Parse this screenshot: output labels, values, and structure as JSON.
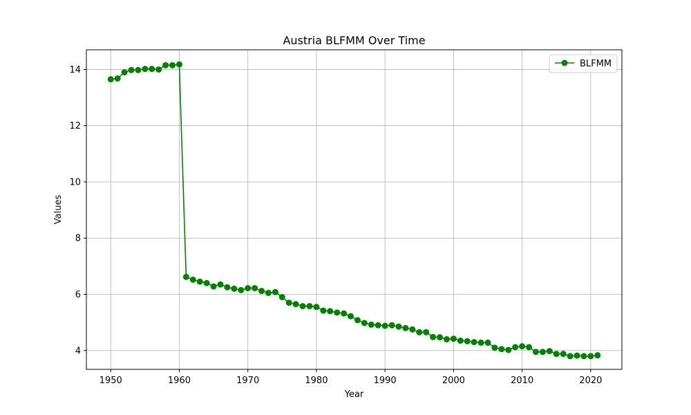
{
  "chart_data": {
    "type": "line",
    "title": "Austria BLFMM Over Time",
    "xlabel": "Year",
    "ylabel": "Values",
    "xlim": [
      1946.45,
      2024.55
    ],
    "ylim": [
      3.33,
      14.7
    ],
    "x_ticks": [
      1950,
      1960,
      1970,
      1980,
      1990,
      2000,
      2010,
      2020
    ],
    "y_ticks": [
      4,
      6,
      8,
      10,
      12,
      14
    ],
    "grid": true,
    "legend_position": "top-right",
    "series": [
      {
        "name": "BLFMM",
        "color": "#008000",
        "marker": "circle",
        "x": [
          1950,
          1951,
          1952,
          1953,
          1954,
          1955,
          1956,
          1957,
          1958,
          1959,
          1960,
          1961,
          1962,
          1963,
          1964,
          1965,
          1966,
          1967,
          1968,
          1969,
          1970,
          1971,
          1972,
          1973,
          1974,
          1975,
          1976,
          1977,
          1978,
          1979,
          1980,
          1981,
          1982,
          1983,
          1984,
          1985,
          1986,
          1987,
          1988,
          1989,
          1990,
          1991,
          1992,
          1993,
          1994,
          1995,
          1996,
          1997,
          1998,
          1999,
          2000,
          2001,
          2002,
          2003,
          2004,
          2005,
          2006,
          2007,
          2008,
          2009,
          2010,
          2011,
          2012,
          2013,
          2014,
          2015,
          2016,
          2017,
          2018,
          2019,
          2020,
          2021
        ],
        "values": [
          13.65,
          13.68,
          13.9,
          13.98,
          13.98,
          14.02,
          14.02,
          14.0,
          14.15,
          14.15,
          14.18,
          6.62,
          6.52,
          6.45,
          6.4,
          6.28,
          6.35,
          6.25,
          6.2,
          6.15,
          6.22,
          6.22,
          6.12,
          6.05,
          6.08,
          5.9,
          5.7,
          5.65,
          5.58,
          5.58,
          5.55,
          5.42,
          5.4,
          5.35,
          5.32,
          5.22,
          5.08,
          4.98,
          4.92,
          4.9,
          4.88,
          4.9,
          4.85,
          4.8,
          4.75,
          4.65,
          4.65,
          4.48,
          4.47,
          4.4,
          4.42,
          4.35,
          4.33,
          4.3,
          4.28,
          4.28,
          4.1,
          4.05,
          4.02,
          4.12,
          4.15,
          4.12,
          3.95,
          3.95,
          3.98,
          3.88,
          3.88,
          3.8,
          3.82,
          3.8,
          3.8,
          3.83
        ]
      }
    ]
  }
}
